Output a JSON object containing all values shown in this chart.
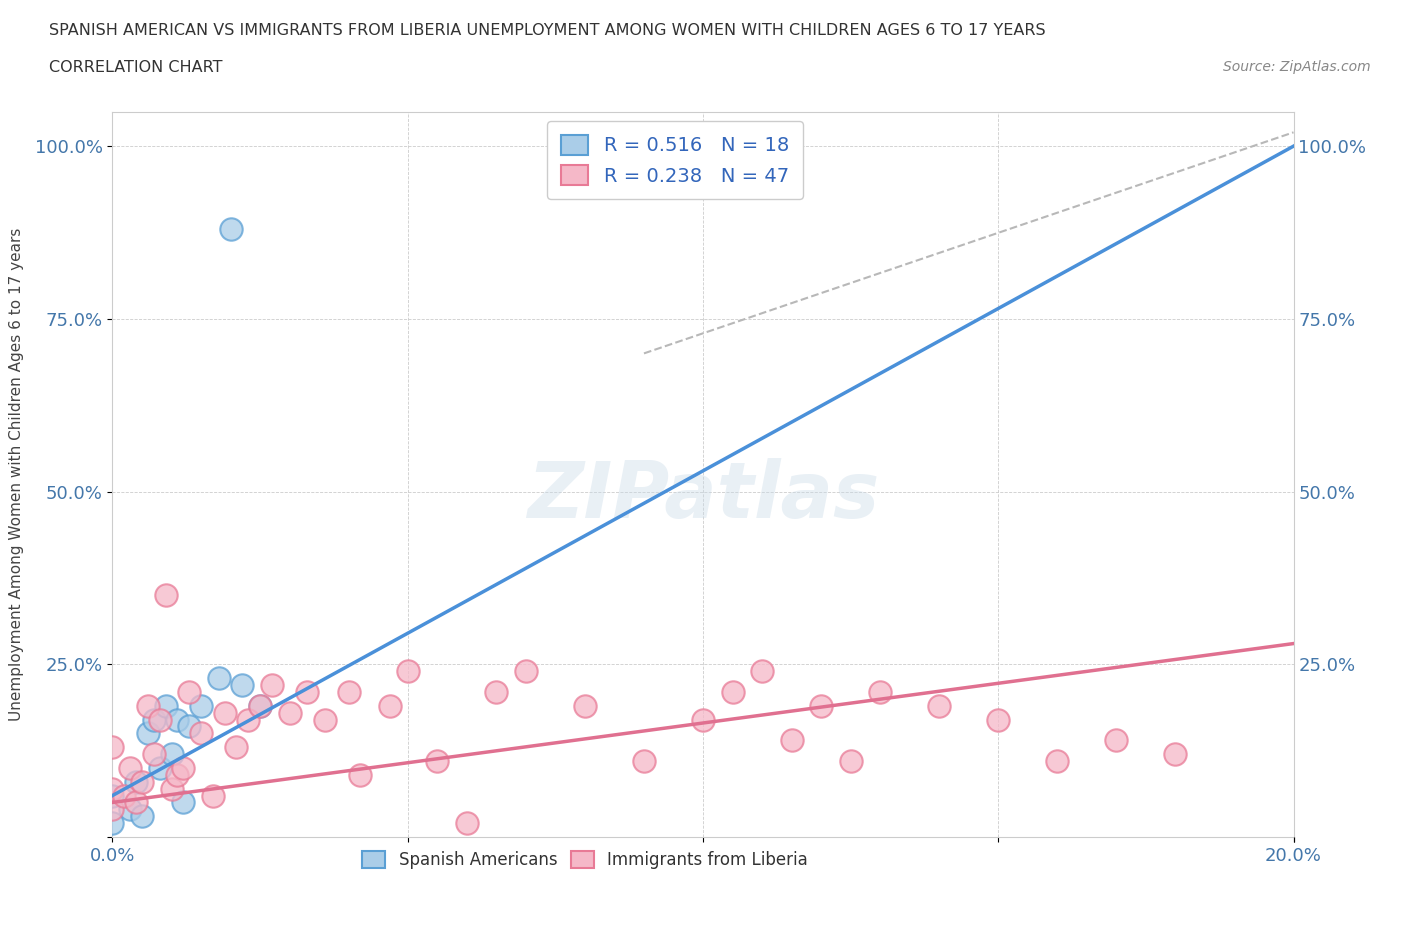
{
  "title_line1": "SPANISH AMERICAN VS IMMIGRANTS FROM LIBERIA UNEMPLOYMENT AMONG WOMEN WITH CHILDREN AGES 6 TO 17 YEARS",
  "title_line2": "CORRELATION CHART",
  "source": "Source: ZipAtlas.com",
  "ylabel": "Unemployment Among Women with Children Ages 6 to 17 years",
  "xlim": [
    0.0,
    0.2
  ],
  "ylim": [
    0.0,
    1.05
  ],
  "legend_r1": "R = 0.516",
  "legend_n1": "N = 18",
  "legend_r2": "R = 0.238",
  "legend_n2": "N = 47",
  "color_blue_fill": "#aacde8",
  "color_blue_edge": "#5a9fd4",
  "color_pink_fill": "#f5b8c8",
  "color_pink_edge": "#e87a96",
  "color_blue_line": "#4a90d9",
  "color_pink_line": "#e07090",
  "color_dashed_line": "#b8b8b8",
  "watermark": "ZIPatlas",
  "blue_line_x": [
    0.0,
    0.2
  ],
  "blue_line_y": [
    0.06,
    1.0
  ],
  "pink_line_x": [
    0.0,
    0.2
  ],
  "pink_line_y": [
    0.05,
    0.28
  ],
  "dashed_line_x": [
    0.09,
    0.2
  ],
  "dashed_line_y": [
    0.7,
    1.02
  ],
  "spanish_x": [
    0.0,
    0.0,
    0.003,
    0.004,
    0.005,
    0.006,
    0.007,
    0.008,
    0.009,
    0.01,
    0.011,
    0.012,
    0.013,
    0.015,
    0.018,
    0.022,
    0.025,
    0.02
  ],
  "spanish_y": [
    0.02,
    0.06,
    0.04,
    0.08,
    0.03,
    0.15,
    0.17,
    0.1,
    0.19,
    0.12,
    0.17,
    0.05,
    0.16,
    0.19,
    0.23,
    0.22,
    0.19,
    0.88
  ],
  "liberia_x": [
    0.0,
    0.0,
    0.0,
    0.002,
    0.003,
    0.004,
    0.005,
    0.006,
    0.007,
    0.008,
    0.009,
    0.01,
    0.011,
    0.012,
    0.013,
    0.015,
    0.017,
    0.019,
    0.021,
    0.023,
    0.025,
    0.027,
    0.03,
    0.033,
    0.036,
    0.04,
    0.042,
    0.047,
    0.05,
    0.055,
    0.06,
    0.065,
    0.07,
    0.08,
    0.09,
    0.1,
    0.105,
    0.11,
    0.115,
    0.12,
    0.125,
    0.13,
    0.14,
    0.15,
    0.16,
    0.17,
    0.18
  ],
  "liberia_y": [
    0.04,
    0.07,
    0.13,
    0.06,
    0.1,
    0.05,
    0.08,
    0.19,
    0.12,
    0.17,
    0.35,
    0.07,
    0.09,
    0.1,
    0.21,
    0.15,
    0.06,
    0.18,
    0.13,
    0.17,
    0.19,
    0.22,
    0.18,
    0.21,
    0.17,
    0.21,
    0.09,
    0.19,
    0.24,
    0.11,
    0.02,
    0.21,
    0.24,
    0.19,
    0.11,
    0.17,
    0.21,
    0.24,
    0.14,
    0.19,
    0.11,
    0.21,
    0.19,
    0.17,
    0.11,
    0.14,
    0.12
  ]
}
